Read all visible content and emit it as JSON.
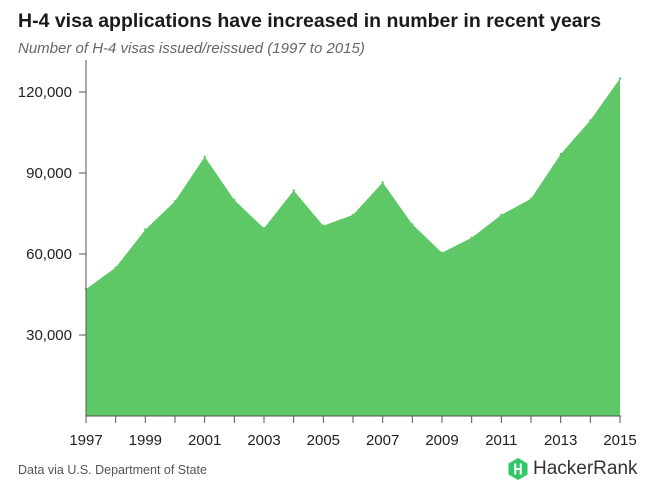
{
  "header": {
    "title": "H-4 visa applications have increased in number in recent years",
    "subtitle": "Number of H-4 visas issued/reissued (1997 to 2015)"
  },
  "footer": {
    "source": "Data via U.S. Department of State",
    "brand": "HackerRank",
    "brand_icon": "hackerrank-h-logo-icon"
  },
  "colors": {
    "area_fill": "#5ec866",
    "brand_green": "#2ec866"
  },
  "chart_data": {
    "type": "area",
    "title": "H-4 visa applications have increased in number in recent years",
    "subtitle": "Number of H-4 visas issued/reissued (1997 to 2015)",
    "xlabel": "",
    "ylabel": "",
    "x": [
      1997,
      1998,
      1999,
      2000,
      2001,
      2002,
      2003,
      2004,
      2005,
      2006,
      2007,
      2008,
      2009,
      2010,
      2011,
      2012,
      2013,
      2014,
      2015
    ],
    "values": [
      47000,
      55000,
      69000,
      79500,
      96000,
      80000,
      69500,
      83500,
      70500,
      74500,
      86500,
      71000,
      60500,
      66000,
      74500,
      80500,
      97000,
      109500,
      125000
    ],
    "xlim": [
      1997,
      2015
    ],
    "ylim": [
      0,
      130000
    ],
    "x_tick_labels": [
      "1997",
      "1999",
      "2001",
      "2003",
      "2005",
      "2007",
      "2009",
      "2011",
      "2013",
      "2015"
    ],
    "y_tick_labels": [
      "30,000",
      "60,000",
      "90,000",
      "120,000"
    ],
    "y_tick_values": [
      30000,
      60000,
      90000,
      120000
    ],
    "grid": false,
    "legend": "none"
  }
}
